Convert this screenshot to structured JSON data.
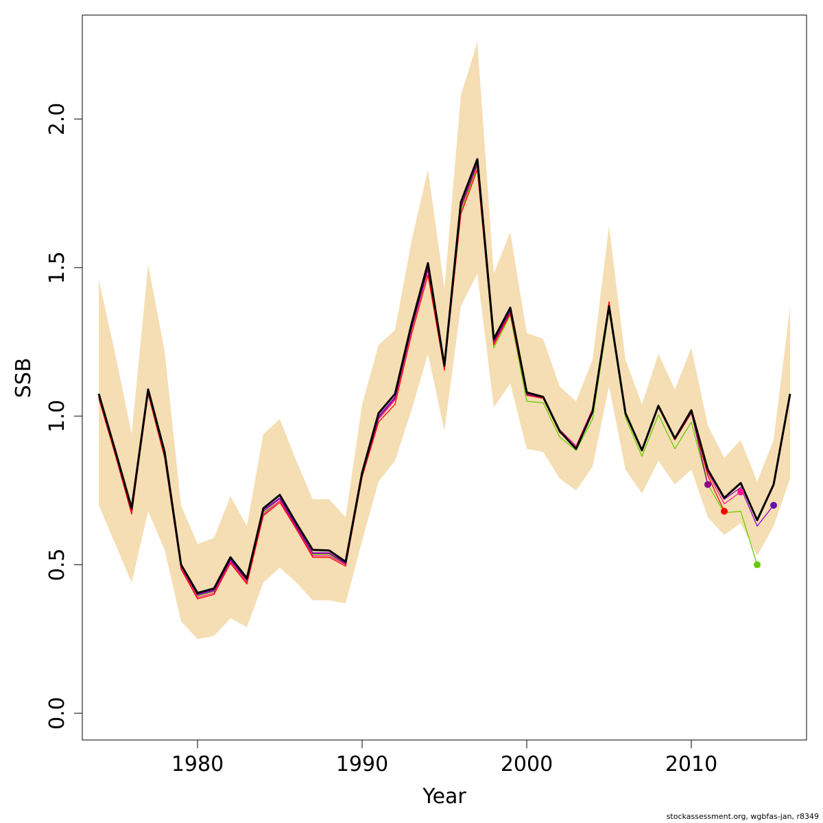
{
  "chart_data": {
    "type": "line",
    "xlabel": "Year",
    "ylabel": "SSB",
    "xlim": [
      1973,
      2017
    ],
    "ylim": [
      -0.09,
      2.35
    ],
    "x_ticks": [
      1980,
      1990,
      2000,
      2010
    ],
    "y_ticks": [
      0.0,
      0.5,
      1.0,
      1.5,
      2.0
    ],
    "y_tick_labels": [
      "0.0",
      "0.5",
      "1.0",
      "1.5",
      "2.0"
    ],
    "grid": false,
    "band_color": "#F5DEB3",
    "confidence_band": {
      "x": [
        1974,
        1975,
        1976,
        1977,
        1978,
        1979,
        1980,
        1981,
        1982,
        1983,
        1984,
        1985,
        1986,
        1987,
        1988,
        1989,
        1990,
        1991,
        1992,
        1993,
        1994,
        1995,
        1996,
        1997,
        1998,
        1999,
        2000,
        2001,
        2002,
        2003,
        2004,
        2005,
        2006,
        2007,
        2008,
        2009,
        2010,
        2011,
        2012,
        2013,
        2014,
        2015,
        2016
      ],
      "lower": [
        0.7,
        0.57,
        0.44,
        0.68,
        0.55,
        0.31,
        0.25,
        0.26,
        0.32,
        0.29,
        0.44,
        0.49,
        0.44,
        0.38,
        0.38,
        0.37,
        0.58,
        0.78,
        0.85,
        1.02,
        1.21,
        0.95,
        1.37,
        1.48,
        1.03,
        1.11,
        0.89,
        0.88,
        0.79,
        0.75,
        0.83,
        1.1,
        0.82,
        0.74,
        0.85,
        0.77,
        0.82,
        0.66,
        0.6,
        0.64,
        0.53,
        0.63,
        0.79
      ],
      "upper": [
        1.46,
        1.21,
        0.94,
        1.51,
        1.22,
        0.7,
        0.57,
        0.59,
        0.73,
        0.63,
        0.94,
        0.99,
        0.85,
        0.72,
        0.72,
        0.66,
        1.04,
        1.24,
        1.29,
        1.59,
        1.83,
        1.43,
        2.08,
        2.26,
        1.48,
        1.62,
        1.28,
        1.26,
        1.1,
        1.05,
        1.19,
        1.64,
        1.19,
        1.04,
        1.21,
        1.09,
        1.23,
        0.97,
        0.86,
        0.92,
        0.78,
        0.92,
        1.37
      ]
    },
    "series": [
      {
        "color": "#000000",
        "x": [
          1974,
          1975,
          1976,
          1977,
          1978,
          1979,
          1980,
          1981,
          1982,
          1983,
          1984,
          1985,
          1986,
          1987,
          1988,
          1989,
          1990,
          1991,
          1992,
          1993,
          1994,
          1995,
          1996,
          1997,
          1998,
          1999,
          2000,
          2001,
          2002,
          2003,
          2004,
          2005,
          2006,
          2007,
          2008,
          2009,
          2010,
          2011,
          2012,
          2013,
          2014,
          2015,
          2016
        ],
        "values": [
          1.075,
          0.885,
          0.69,
          1.09,
          0.88,
          0.5,
          0.405,
          0.42,
          0.525,
          0.455,
          0.69,
          0.735,
          0.64,
          0.55,
          0.548,
          0.51,
          0.81,
          1.01,
          1.075,
          1.31,
          1.515,
          1.17,
          1.72,
          1.865,
          1.26,
          1.365,
          1.08,
          1.065,
          0.95,
          0.89,
          1.015,
          1.37,
          1.01,
          0.885,
          1.035,
          0.925,
          1.02,
          0.82,
          0.725,
          0.775,
          0.65,
          0.77,
          1.075
        ]
      },
      {
        "color": "#9400D3",
        "x": [
          1974,
          1975,
          1976,
          1977,
          1978,
          1979,
          1980,
          1981,
          1982,
          1983,
          1984,
          1985,
          1986,
          1987,
          1988,
          1989,
          1990,
          1991,
          1992,
          1993,
          1994,
          1995,
          1996,
          1997,
          1998,
          1999,
          2000,
          2001,
          2002,
          2003,
          2004,
          2005,
          2006,
          2007,
          2008,
          2009,
          2010,
          2011,
          2012,
          2013,
          2014,
          2015
        ],
        "values": [
          1.07,
          0.875,
          0.68,
          1.085,
          0.87,
          0.495,
          0.4,
          0.415,
          0.52,
          0.45,
          0.685,
          0.725,
          0.63,
          0.54,
          0.54,
          0.505,
          0.8,
          1.0,
          1.065,
          1.3,
          1.5,
          1.17,
          1.7,
          1.85,
          1.25,
          1.355,
          1.075,
          1.065,
          0.95,
          0.895,
          1.02,
          1.375,
          1.01,
          0.89,
          1.035,
          0.925,
          1.015,
          0.815,
          0.72,
          0.76,
          0.63,
          0.7
        ]
      },
      {
        "color": "#66CC00",
        "x": [
          1974,
          1975,
          1976,
          1977,
          1978,
          1979,
          1980,
          1981,
          1982,
          1983,
          1984,
          1985,
          1986,
          1987,
          1988,
          1989,
          1990,
          1991,
          1992,
          1993,
          1994,
          1995,
          1996,
          1997,
          1998,
          1999,
          2000,
          2001,
          2002,
          2003,
          2004,
          2005,
          2006,
          2007,
          2008,
          2009,
          2010,
          2011,
          2012,
          2013,
          2014
        ],
        "values": [
          1.06,
          0.87,
          0.675,
          1.075,
          0.86,
          0.49,
          0.395,
          0.41,
          0.51,
          0.445,
          0.675,
          0.715,
          0.625,
          0.535,
          0.535,
          0.5,
          0.795,
          0.99,
          1.055,
          1.29,
          1.49,
          1.16,
          1.69,
          1.84,
          1.23,
          1.34,
          1.05,
          1.045,
          0.93,
          0.885,
          0.99,
          1.355,
          0.995,
          0.865,
          1.005,
          0.89,
          0.98,
          0.77,
          0.675,
          0.68,
          0.5
        ]
      },
      {
        "color": "#FF1493",
        "x": [
          1974,
          1975,
          1976,
          1977,
          1978,
          1979,
          1980,
          1981,
          1982,
          1983,
          1984,
          1985,
          1986,
          1987,
          1988,
          1989,
          1990,
          1991,
          1992,
          1993,
          1994,
          1995,
          1996,
          1997,
          1998,
          1999,
          2000,
          2001,
          2002,
          2003,
          2004,
          2005,
          2006,
          2007,
          2008,
          2009,
          2010,
          2011,
          2012,
          2013
        ],
        "values": [
          1.065,
          0.875,
          0.675,
          1.08,
          0.865,
          0.49,
          0.39,
          0.405,
          0.51,
          0.44,
          0.67,
          0.715,
          0.625,
          0.53,
          0.53,
          0.5,
          0.8,
          0.99,
          1.055,
          1.29,
          1.49,
          1.165,
          1.7,
          1.845,
          1.245,
          1.35,
          1.075,
          1.065,
          0.955,
          0.9,
          1.025,
          1.38,
          1.01,
          0.89,
          1.035,
          0.925,
          1.015,
          0.81,
          0.705,
          0.745
        ]
      },
      {
        "color": "#FF0000",
        "x": [
          1974,
          1975,
          1976,
          1977,
          1978,
          1979,
          1980,
          1981,
          1982,
          1983,
          1984,
          1985,
          1986,
          1987,
          1988,
          1989,
          1990,
          1991,
          1992,
          1993,
          1994,
          1995,
          1996,
          1997,
          1998,
          1999,
          2000,
          2001,
          2002,
          2003,
          2004,
          2005,
          2006,
          2007,
          2008,
          2009,
          2010,
          2011,
          2012
        ],
        "values": [
          1.06,
          0.87,
          0.67,
          1.075,
          0.86,
          0.485,
          0.385,
          0.4,
          0.505,
          0.435,
          0.665,
          0.71,
          0.62,
          0.525,
          0.525,
          0.495,
          0.795,
          0.98,
          1.04,
          1.275,
          1.475,
          1.155,
          1.68,
          1.83,
          1.24,
          1.345,
          1.07,
          1.06,
          0.945,
          0.895,
          1.02,
          1.385,
          1.005,
          0.885,
          1.03,
          0.92,
          1.01,
          0.8,
          0.68
        ]
      },
      {
        "color": "#8B008B",
        "x": [
          1974,
          1975,
          1976,
          1977,
          1978,
          1979,
          1980,
          1981,
          1982,
          1983,
          1984,
          1985,
          1986,
          1987,
          1988,
          1989,
          1990,
          1991,
          1992,
          1993,
          1994,
          1995,
          1996,
          1997,
          1998,
          1999,
          2000,
          2001,
          2002,
          2003,
          2004,
          2005,
          2006,
          2007,
          2008,
          2009,
          2010,
          2011
        ],
        "values": [
          1.068,
          0.878,
          0.682,
          1.082,
          0.868,
          0.495,
          0.398,
          0.412,
          0.515,
          0.447,
          0.68,
          0.722,
          0.628,
          0.538,
          0.538,
          0.503,
          0.802,
          0.995,
          1.06,
          1.295,
          1.495,
          1.168,
          1.705,
          1.85,
          1.25,
          1.352,
          1.073,
          1.063,
          0.948,
          0.893,
          1.018,
          1.372,
          1.008,
          0.887,
          1.033,
          0.922,
          1.013,
          0.77
        ]
      }
    ],
    "endpoints": [
      {
        "x": 2011,
        "y": 0.77,
        "color": "#8B008B"
      },
      {
        "x": 2012,
        "y": 0.68,
        "color": "#FF0000"
      },
      {
        "x": 2013,
        "y": 0.745,
        "color": "#FF1493"
      },
      {
        "x": 2014,
        "y": 0.5,
        "color": "#66CC00"
      },
      {
        "x": 2015,
        "y": 0.7,
        "color": "#6A0DAD"
      }
    ]
  },
  "footer": "stockassessment.org, wgbfas-jan, r8349"
}
